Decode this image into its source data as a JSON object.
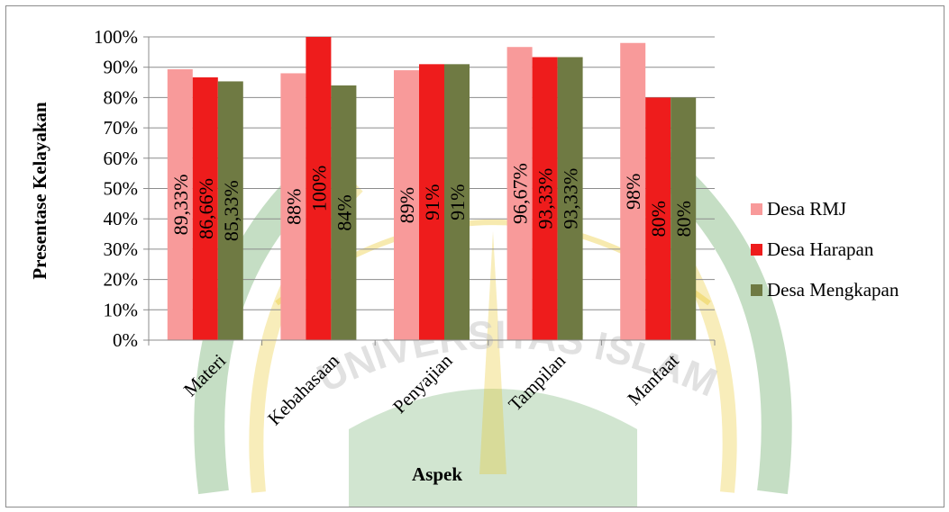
{
  "chart_data": {
    "type": "bar",
    "categories": [
      "Materi",
      "Kebahasaan",
      "Penyajian",
      "Tampilan",
      "Manfaat"
    ],
    "series": [
      {
        "name": "Desa RMJ",
        "values": [
          89.33,
          88,
          89,
          96.67,
          98
        ],
        "labels": [
          "89,33%",
          "88%",
          "89%",
          "96,67%",
          "98%"
        ],
        "color": "#f89a9a"
      },
      {
        "name": "Desa Harapan",
        "values": [
          86.66,
          100,
          91,
          93.33,
          80
        ],
        "labels": [
          "86,66%",
          "100%",
          "91%",
          "93,33%",
          "80%"
        ],
        "color": "#ee1c1c"
      },
      {
        "name": "Desa Mengkapan",
        "values": [
          85.33,
          84,
          91,
          93.33,
          80
        ],
        "labels": [
          "85,33%",
          "84%",
          "91%",
          "93,33%",
          "80%"
        ],
        "color": "#6f7a43"
      }
    ],
    "yticks": [
      "0%",
      "10%",
      "20%",
      "30%",
      "40%",
      "50%",
      "60%",
      "70%",
      "80%",
      "90%",
      "100%"
    ],
    "ylim": [
      0,
      100
    ],
    "xlabel": "Aspek",
    "ylabel": "Presentase Kelayakan",
    "grid": true,
    "legend_position": "right"
  },
  "watermark": {
    "text": "UNIVERSITAS ISLAM RIAU",
    "colors": {
      "green": "#2f8a2a",
      "yellow": "#e8c21a"
    }
  }
}
